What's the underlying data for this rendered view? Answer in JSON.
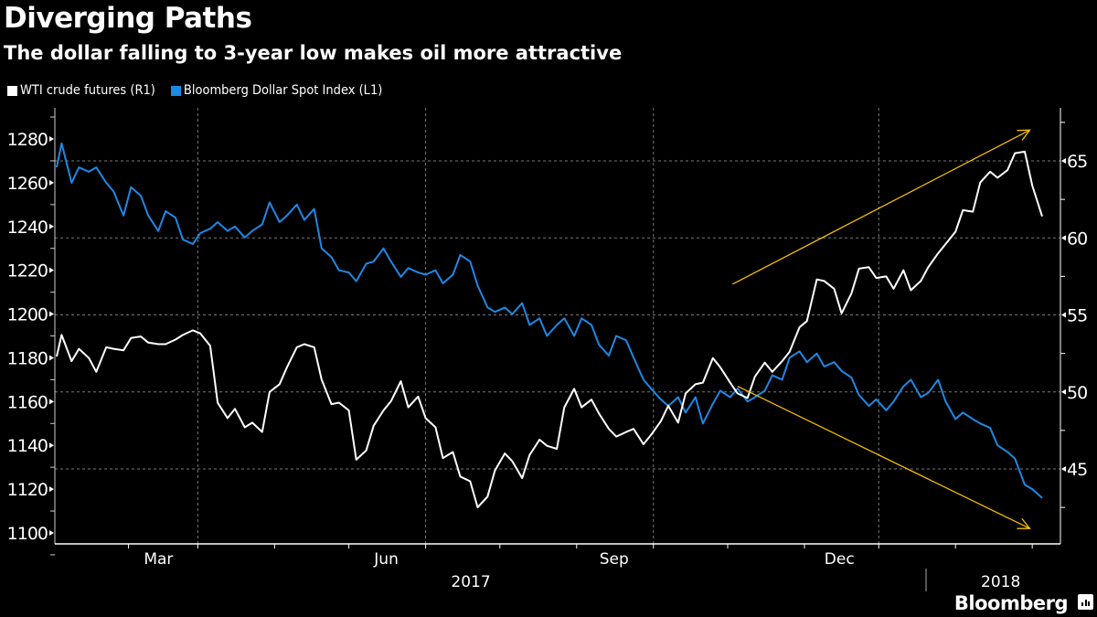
{
  "header": {
    "title": "Diverging Paths",
    "subtitle": "The dollar falling to 3-year low makes oil more attractive"
  },
  "legend": [
    {
      "label": "WTI crude futures (R1)",
      "color": "#ffffff"
    },
    {
      "label": "Bloomberg Dollar Spot Index (L1)",
      "color": "#1e88e5"
    }
  ],
  "footer": {
    "brand": "Bloomberg",
    "brand_icon": "bloomberg-chart-icon"
  },
  "annotations": {
    "arrow_color": "#f5c000",
    "arrows": [
      {
        "name": "oil-up-trend-arrow",
        "from": [
          "2017-10-03",
          57.0
        ],
        "to": [
          "2018-01-31",
          67.0
        ]
      },
      {
        "name": "dollar-down-trend-arrow",
        "from": [
          "2017-10-05",
          1167.0
        ],
        "to": [
          "2018-01-31",
          1102.0
        ]
      }
    ]
  },
  "chart_data": {
    "type": "line",
    "title": "Diverging Paths",
    "subtitle": "The dollar falling to 3-year low makes oil more attractive",
    "xlabel": "",
    "x_range": [
      "2017-01-03",
      "2018-02-05"
    ],
    "x_ticks": [
      {
        "label": "Mar",
        "date": "2017-03-01"
      },
      {
        "label": "Jun",
        "date": "2017-06-01"
      },
      {
        "label": "Sep",
        "date": "2017-09-01"
      },
      {
        "label": "Dec",
        "date": "2017-12-01"
      }
    ],
    "x_minor_ticks": [
      "2017-02-01",
      "2017-04-01",
      "2017-05-01",
      "2017-07-01",
      "2017-08-01",
      "2017-10-01",
      "2017-11-01",
      "2018-01-01",
      "2018-02-01"
    ],
    "year_labels": [
      {
        "label": "2017",
        "date": "2017-06-20"
      },
      {
        "label": "2018",
        "date": "2018-01-20"
      }
    ],
    "year_divider": "2017-12-31",
    "left_axis": {
      "label": "Bloomberg Dollar Spot Index (L1)",
      "range": [
        1095,
        1292
      ],
      "ticks": [
        1100,
        1120,
        1140,
        1160,
        1180,
        1200,
        1220,
        1240,
        1260,
        1280
      ]
    },
    "right_axis": {
      "label": "WTI crude futures (R1)",
      "range": [
        41.5,
        68.8
      ],
      "ticks": [
        45,
        50,
        55,
        60,
        65
      ]
    },
    "grid": {
      "horizontal_right_axis": [
        45,
        50,
        55,
        60,
        65
      ],
      "vertical": [
        "2017-03-01",
        "2017-06-01",
        "2017-09-01",
        "2017-12-01"
      ]
    },
    "legend_position": "top-left",
    "series": [
      {
        "name": "Bloomberg Dollar Spot Index (L1)",
        "axis": "left",
        "color": "#1e88e5",
        "points": [
          [
            "2017-01-03",
            1267
          ],
          [
            "2017-01-05",
            1278
          ],
          [
            "2017-01-09",
            1260
          ],
          [
            "2017-01-12",
            1267
          ],
          [
            "2017-01-16",
            1265
          ],
          [
            "2017-01-19",
            1267
          ],
          [
            "2017-01-23",
            1260
          ],
          [
            "2017-01-26",
            1256
          ],
          [
            "2017-01-30",
            1245
          ],
          [
            "2017-02-02",
            1258
          ],
          [
            "2017-02-06",
            1254
          ],
          [
            "2017-02-09",
            1245
          ],
          [
            "2017-02-13",
            1238
          ],
          [
            "2017-02-16",
            1247
          ],
          [
            "2017-02-20",
            1244
          ],
          [
            "2017-02-23",
            1234
          ],
          [
            "2017-02-27",
            1232
          ],
          [
            "2017-03-02",
            1237
          ],
          [
            "2017-03-06",
            1239
          ],
          [
            "2017-03-09",
            1242
          ],
          [
            "2017-03-13",
            1238
          ],
          [
            "2017-03-16",
            1240
          ],
          [
            "2017-03-20",
            1235
          ],
          [
            "2017-03-23",
            1238
          ],
          [
            "2017-03-27",
            1241
          ],
          [
            "2017-03-30",
            1251
          ],
          [
            "2017-04-03",
            1242
          ],
          [
            "2017-04-06",
            1245
          ],
          [
            "2017-04-10",
            1250
          ],
          [
            "2017-04-13",
            1243
          ],
          [
            "2017-04-17",
            1248
          ],
          [
            "2017-04-20",
            1230
          ],
          [
            "2017-04-24",
            1226
          ],
          [
            "2017-04-27",
            1220
          ],
          [
            "2017-05-01",
            1219
          ],
          [
            "2017-05-04",
            1215
          ],
          [
            "2017-05-08",
            1223
          ],
          [
            "2017-05-11",
            1224
          ],
          [
            "2017-05-15",
            1230
          ],
          [
            "2017-05-18",
            1224
          ],
          [
            "2017-05-22",
            1217
          ],
          [
            "2017-05-25",
            1221
          ],
          [
            "2017-05-29",
            1219
          ],
          [
            "2017-06-01",
            1218
          ],
          [
            "2017-06-05",
            1220
          ],
          [
            "2017-06-08",
            1214
          ],
          [
            "2017-06-12",
            1218
          ],
          [
            "2017-06-15",
            1227
          ],
          [
            "2017-06-19",
            1224
          ],
          [
            "2017-06-22",
            1213
          ],
          [
            "2017-06-26",
            1203
          ],
          [
            "2017-06-29",
            1201
          ],
          [
            "2017-07-03",
            1203
          ],
          [
            "2017-07-06",
            1200
          ],
          [
            "2017-07-10",
            1205
          ],
          [
            "2017-07-13",
            1195
          ],
          [
            "2017-07-17",
            1198
          ],
          [
            "2017-07-20",
            1190
          ],
          [
            "2017-07-24",
            1195
          ],
          [
            "2017-07-27",
            1198
          ],
          [
            "2017-07-31",
            1190
          ],
          [
            "2017-08-03",
            1198
          ],
          [
            "2017-08-07",
            1195
          ],
          [
            "2017-08-10",
            1186
          ],
          [
            "2017-08-14",
            1181
          ],
          [
            "2017-08-17",
            1190
          ],
          [
            "2017-08-21",
            1188
          ],
          [
            "2017-08-24",
            1180
          ],
          [
            "2017-08-28",
            1170
          ],
          [
            "2017-08-31",
            1166
          ],
          [
            "2017-09-04",
            1161
          ],
          [
            "2017-09-07",
            1158
          ],
          [
            "2017-09-11",
            1162
          ],
          [
            "2017-09-14",
            1155
          ],
          [
            "2017-09-18",
            1162
          ],
          [
            "2017-09-21",
            1150
          ],
          [
            "2017-09-25",
            1159
          ],
          [
            "2017-09-28",
            1165
          ],
          [
            "2017-10-02",
            1162
          ],
          [
            "2017-10-05",
            1166
          ],
          [
            "2017-10-09",
            1160
          ],
          [
            "2017-10-12",
            1162
          ],
          [
            "2017-10-16",
            1165
          ],
          [
            "2017-10-19",
            1172
          ],
          [
            "2017-10-23",
            1170
          ],
          [
            "2017-10-26",
            1180
          ],
          [
            "2017-10-30",
            1183
          ],
          [
            "2017-11-02",
            1178
          ],
          [
            "2017-11-06",
            1182
          ],
          [
            "2017-11-09",
            1176
          ],
          [
            "2017-11-13",
            1178
          ],
          [
            "2017-11-16",
            1174
          ],
          [
            "2017-11-20",
            1171
          ],
          [
            "2017-11-23",
            1163
          ],
          [
            "2017-11-27",
            1158
          ],
          [
            "2017-11-30",
            1161
          ],
          [
            "2017-12-04",
            1156
          ],
          [
            "2017-12-07",
            1160
          ],
          [
            "2017-12-11",
            1167
          ],
          [
            "2017-12-14",
            1170
          ],
          [
            "2017-12-18",
            1162
          ],
          [
            "2017-12-21",
            1164
          ],
          [
            "2017-12-25",
            1170
          ],
          [
            "2017-12-28",
            1160
          ],
          [
            "2018-01-01",
            1152
          ],
          [
            "2018-01-04",
            1155
          ],
          [
            "2018-01-08",
            1152
          ],
          [
            "2018-01-11",
            1150
          ],
          [
            "2018-01-15",
            1148
          ],
          [
            "2018-01-18",
            1140
          ],
          [
            "2018-01-22",
            1137
          ],
          [
            "2018-01-25",
            1134
          ],
          [
            "2018-01-29",
            1122
          ],
          [
            "2018-02-01",
            1120
          ],
          [
            "2018-02-05",
            1116
          ]
        ]
      },
      {
        "name": "WTI crude futures (R1)",
        "axis": "right",
        "color": "#ffffff",
        "points": [
          [
            "2017-01-03",
            52.3
          ],
          [
            "2017-01-05",
            53.7
          ],
          [
            "2017-01-09",
            52.0
          ],
          [
            "2017-01-12",
            52.8
          ],
          [
            "2017-01-16",
            52.2
          ],
          [
            "2017-01-19",
            51.3
          ],
          [
            "2017-01-23",
            52.9
          ],
          [
            "2017-01-26",
            52.8
          ],
          [
            "2017-01-30",
            52.7
          ],
          [
            "2017-02-02",
            53.5
          ],
          [
            "2017-02-06",
            53.6
          ],
          [
            "2017-02-09",
            53.2
          ],
          [
            "2017-02-13",
            53.1
          ],
          [
            "2017-02-16",
            53.1
          ],
          [
            "2017-02-20",
            53.4
          ],
          [
            "2017-02-23",
            53.7
          ],
          [
            "2017-02-27",
            54.0
          ],
          [
            "2017-03-02",
            53.8
          ],
          [
            "2017-03-06",
            53.0
          ],
          [
            "2017-03-09",
            49.3
          ],
          [
            "2017-03-13",
            48.3
          ],
          [
            "2017-03-16",
            48.9
          ],
          [
            "2017-03-20",
            47.7
          ],
          [
            "2017-03-23",
            48.0
          ],
          [
            "2017-03-27",
            47.4
          ],
          [
            "2017-03-30",
            50.0
          ],
          [
            "2017-04-03",
            50.5
          ],
          [
            "2017-04-06",
            51.6
          ],
          [
            "2017-04-10",
            52.9
          ],
          [
            "2017-04-13",
            53.1
          ],
          [
            "2017-04-17",
            52.9
          ],
          [
            "2017-04-20",
            50.8
          ],
          [
            "2017-04-24",
            49.2
          ],
          [
            "2017-04-27",
            49.3
          ],
          [
            "2017-05-01",
            48.8
          ],
          [
            "2017-05-04",
            45.6
          ],
          [
            "2017-05-08",
            46.2
          ],
          [
            "2017-05-11",
            47.8
          ],
          [
            "2017-05-15",
            48.8
          ],
          [
            "2017-05-18",
            49.4
          ],
          [
            "2017-05-22",
            50.7
          ],
          [
            "2017-05-25",
            49.0
          ],
          [
            "2017-05-29",
            49.7
          ],
          [
            "2017-06-01",
            48.3
          ],
          [
            "2017-06-05",
            47.7
          ],
          [
            "2017-06-08",
            45.7
          ],
          [
            "2017-06-12",
            46.1
          ],
          [
            "2017-06-15",
            44.5
          ],
          [
            "2017-06-19",
            44.2
          ],
          [
            "2017-06-22",
            42.5
          ],
          [
            "2017-06-26",
            43.2
          ],
          [
            "2017-06-29",
            44.9
          ],
          [
            "2017-07-03",
            46.0
          ],
          [
            "2017-07-06",
            45.5
          ],
          [
            "2017-07-10",
            44.4
          ],
          [
            "2017-07-13",
            45.9
          ],
          [
            "2017-07-17",
            46.9
          ],
          [
            "2017-07-20",
            46.5
          ],
          [
            "2017-07-24",
            46.3
          ],
          [
            "2017-07-27",
            49.0
          ],
          [
            "2017-07-31",
            50.2
          ],
          [
            "2017-08-03",
            49.0
          ],
          [
            "2017-08-07",
            49.5
          ],
          [
            "2017-08-10",
            48.6
          ],
          [
            "2017-08-14",
            47.6
          ],
          [
            "2017-08-17",
            47.1
          ],
          [
            "2017-08-21",
            47.4
          ],
          [
            "2017-08-24",
            47.6
          ],
          [
            "2017-08-28",
            46.6
          ],
          [
            "2017-08-31",
            47.2
          ],
          [
            "2017-09-04",
            48.1
          ],
          [
            "2017-09-07",
            49.1
          ],
          [
            "2017-09-11",
            48.0
          ],
          [
            "2017-09-14",
            49.9
          ],
          [
            "2017-09-18",
            50.5
          ],
          [
            "2017-09-21",
            50.6
          ],
          [
            "2017-09-25",
            52.2
          ],
          [
            "2017-09-28",
            51.6
          ],
          [
            "2017-10-02",
            50.6
          ],
          [
            "2017-10-05",
            49.9
          ],
          [
            "2017-10-09",
            49.6
          ],
          [
            "2017-10-12",
            51.0
          ],
          [
            "2017-10-16",
            51.9
          ],
          [
            "2017-10-19",
            51.3
          ],
          [
            "2017-10-23",
            52.0
          ],
          [
            "2017-10-26",
            52.6
          ],
          [
            "2017-10-30",
            54.2
          ],
          [
            "2017-11-02",
            54.6
          ],
          [
            "2017-11-06",
            57.3
          ],
          [
            "2017-11-09",
            57.2
          ],
          [
            "2017-11-13",
            56.7
          ],
          [
            "2017-11-16",
            55.1
          ],
          [
            "2017-11-20",
            56.4
          ],
          [
            "2017-11-23",
            58.0
          ],
          [
            "2017-11-27",
            58.1
          ],
          [
            "2017-11-30",
            57.4
          ],
          [
            "2017-12-04",
            57.5
          ],
          [
            "2017-12-07",
            56.7
          ],
          [
            "2017-12-11",
            57.9
          ],
          [
            "2017-12-14",
            56.6
          ],
          [
            "2017-12-18",
            57.2
          ],
          [
            "2017-12-21",
            58.1
          ],
          [
            "2017-12-25",
            59.0
          ],
          [
            "2017-12-28",
            59.6
          ],
          [
            "2018-01-01",
            60.4
          ],
          [
            "2018-01-04",
            61.8
          ],
          [
            "2018-01-08",
            61.7
          ],
          [
            "2018-01-11",
            63.6
          ],
          [
            "2018-01-15",
            64.3
          ],
          [
            "2018-01-18",
            63.9
          ],
          [
            "2018-01-22",
            64.4
          ],
          [
            "2018-01-25",
            65.5
          ],
          [
            "2018-01-29",
            65.6
          ],
          [
            "2018-02-01",
            63.4
          ],
          [
            "2018-02-05",
            61.4
          ]
        ]
      }
    ]
  }
}
